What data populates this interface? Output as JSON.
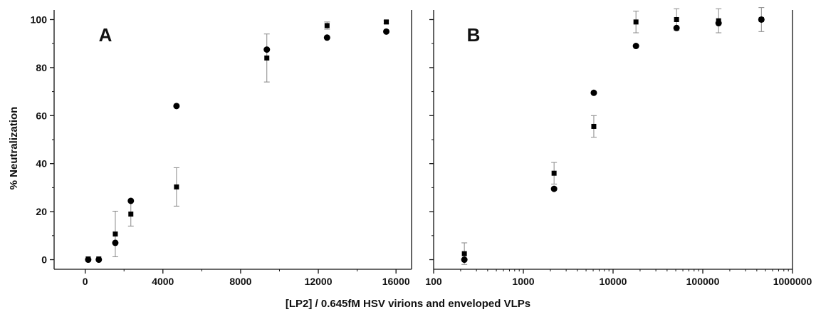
{
  "chart_data": [
    {
      "panel": "A",
      "type": "scatter",
      "x_scale": "linear",
      "xlim": [
        -1600,
        16800
      ],
      "ylim": [
        -4,
        104
      ],
      "x_ticks": [
        0,
        4000,
        8000,
        12000,
        16000
      ],
      "x_tick_labels": [
        "0",
        "4000",
        "8000",
        "12000",
        "16000"
      ],
      "y_ticks": [
        0,
        20,
        40,
        60,
        80,
        100
      ],
      "y_tick_labels": [
        "0",
        "20",
        "40",
        "60",
        "80",
        "100"
      ],
      "ylabel": "% Neutralization",
      "grid": false,
      "legend": "none",
      "series": [
        {
          "marker": "square",
          "points": [
            {
              "x": 155,
              "y": 0.3,
              "err": 0
            },
            {
              "x": 700,
              "y": 0.3,
              "err": 0
            },
            {
              "x": 1550,
              "y": 10.7,
              "err": 9.5
            },
            {
              "x": 2350,
              "y": 19,
              "err": 5
            },
            {
              "x": 4700,
              "y": 30.3,
              "err": 8
            },
            {
              "x": 9350,
              "y": 84,
              "err": 10
            },
            {
              "x": 12450,
              "y": 97.5,
              "err": 1.5
            },
            {
              "x": 15500,
              "y": 99,
              "err": 0.5
            }
          ]
        },
        {
          "marker": "circle",
          "points": [
            {
              "x": 155,
              "y": 0
            },
            {
              "x": 700,
              "y": 0
            },
            {
              "x": 1550,
              "y": 7
            },
            {
              "x": 2350,
              "y": 24.5
            },
            {
              "x": 4700,
              "y": 64
            },
            {
              "x": 9350,
              "y": 87.5
            },
            {
              "x": 12450,
              "y": 92.5
            },
            {
              "x": 15500,
              "y": 95
            }
          ]
        }
      ]
    },
    {
      "panel": "B",
      "type": "scatter",
      "x_scale": "log",
      "xlim": [
        100,
        1000000
      ],
      "ylim": [
        -4,
        104
      ],
      "x_ticks": [
        100,
        1000,
        10000,
        100000,
        1000000
      ],
      "x_tick_labels": [
        "100",
        "1000",
        "10000",
        "100000",
        "1000000"
      ],
      "y_ticks": [
        0,
        20,
        40,
        60,
        80,
        100
      ],
      "grid": false,
      "legend": "none",
      "series": [
        {
          "marker": "square",
          "points": [
            {
              "x": 220,
              "y": 2.5,
              "err": 4.5
            },
            {
              "x": 2200,
              "y": 36,
              "err": 4.5
            },
            {
              "x": 6100,
              "y": 55.5,
              "err": 4.5
            },
            {
              "x": 18000,
              "y": 99,
              "err": 4.5
            },
            {
              "x": 51000,
              "y": 100,
              "err": 4.5
            },
            {
              "x": 150000,
              "y": 99.5,
              "err": 5
            },
            {
              "x": 450000,
              "y": 100,
              "err": 5
            }
          ]
        },
        {
          "marker": "circle",
          "points": [
            {
              "x": 220,
              "y": 0
            },
            {
              "x": 2200,
              "y": 29.5
            },
            {
              "x": 6100,
              "y": 69.5
            },
            {
              "x": 18000,
              "y": 89
            },
            {
              "x": 51000,
              "y": 96.5
            },
            {
              "x": 150000,
              "y": 98.5
            },
            {
              "x": 450000,
              "y": 100
            }
          ]
        }
      ]
    }
  ],
  "figure": {
    "xlabel": "[LP2] / 0.645fM HSV virions and enveloped VLPs",
    "panel_labels": [
      "A",
      "B"
    ],
    "colors": {
      "marker": "#000000",
      "error_bar": "#888888",
      "axis": "#111111"
    }
  }
}
